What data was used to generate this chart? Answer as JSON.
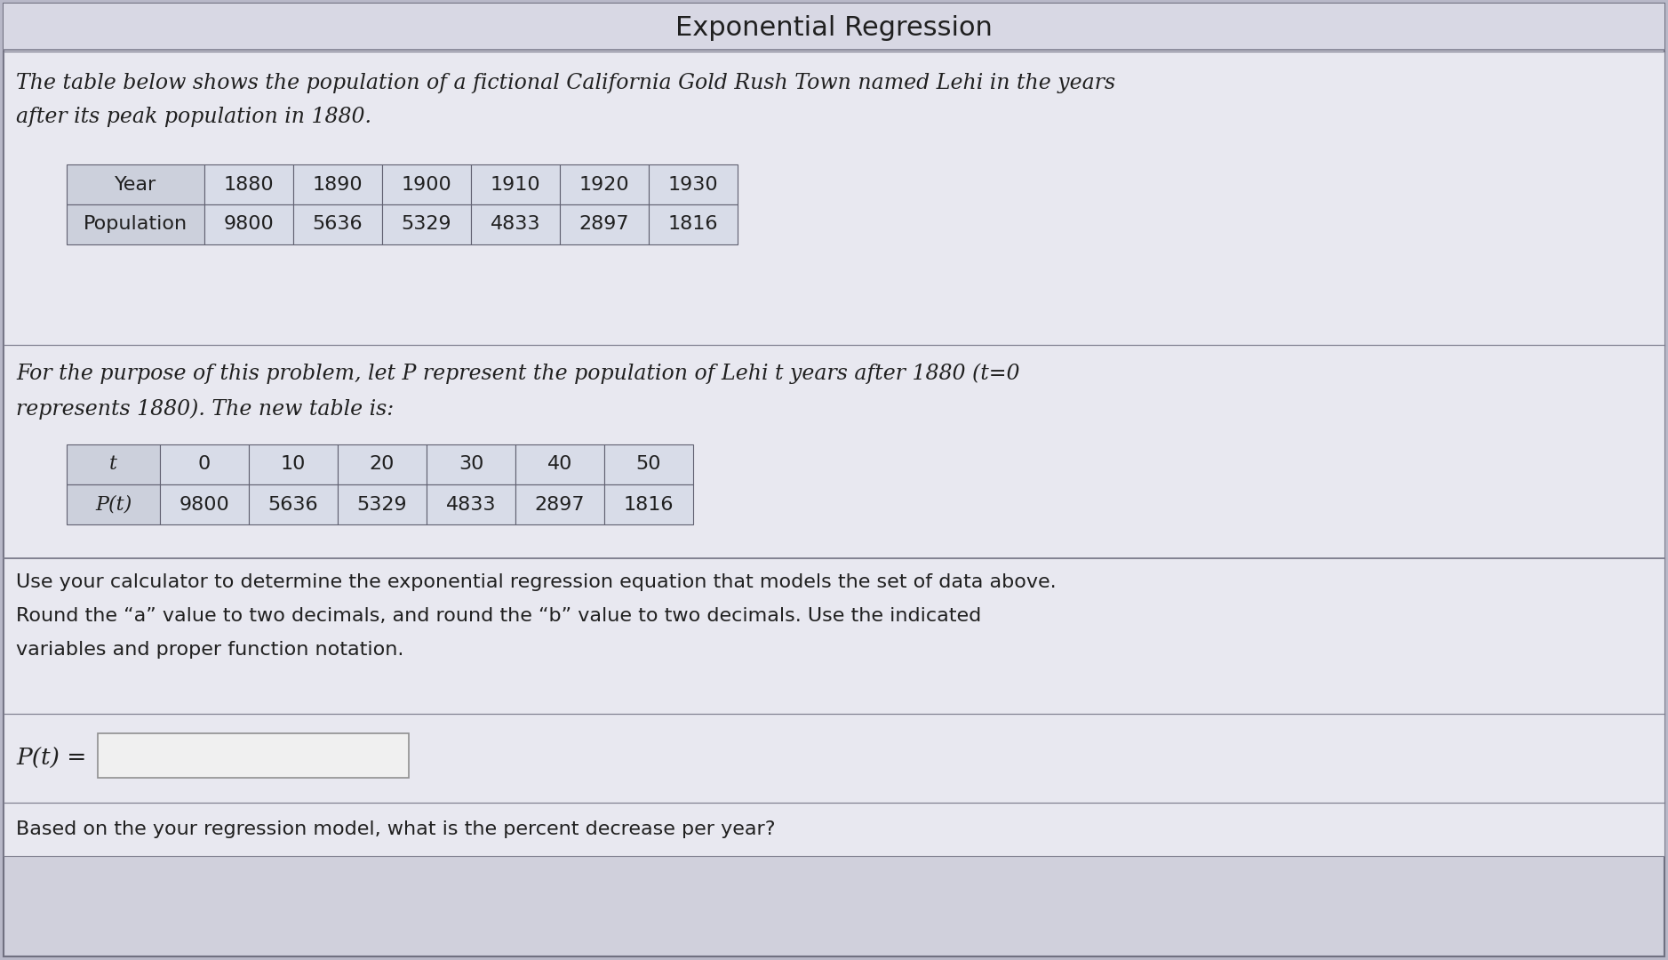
{
  "title": "Exponential Regression",
  "bg_outer": "#b8b8c8",
  "bg_main": "#d0d0dc",
  "bg_title_section": "#d8d8e4",
  "bg_white_section": "#e8e8f0",
  "table_cell_bg": "#d8dce8",
  "table_cell_bg_header": "#ccd0dc",
  "border_color": "#909090",
  "text_color": "#202020",
  "paragraph1_line1": "The table below shows the population of a fictional California Gold Rush Town named Lehi in the years",
  "paragraph1_line2": "after its peak population in 1880.",
  "table1_headers": [
    "Year",
    "1880",
    "1890",
    "1900",
    "1910",
    "1920",
    "1930"
  ],
  "table1_row": [
    "Population",
    "9800",
    "5636",
    "5329",
    "4833",
    "2897",
    "1816"
  ],
  "paragraph2_line1": "For the purpose of this problem, let P represent the population of Lehi t years after 1880 (t=0",
  "paragraph2_line2": "represents 1880). The new table is:",
  "table2_headers": [
    "t",
    "0",
    "10",
    "20",
    "30",
    "40",
    "50"
  ],
  "table2_row": [
    "P(t)",
    "9800",
    "5636",
    "5329",
    "4833",
    "2897",
    "1816"
  ],
  "paragraph3_line1": "Use your calculator to determine the exponential regression equation that models the set of data above.",
  "paragraph3_line2": "Round the “a” value to two decimals, and round the “b” value to two decimals. Use the indicated",
  "paragraph3_line3": "variables and proper function notation.",
  "input_label": "P(t) =",
  "footer": "Based on the your regression model, what is the percent decrease per year?"
}
